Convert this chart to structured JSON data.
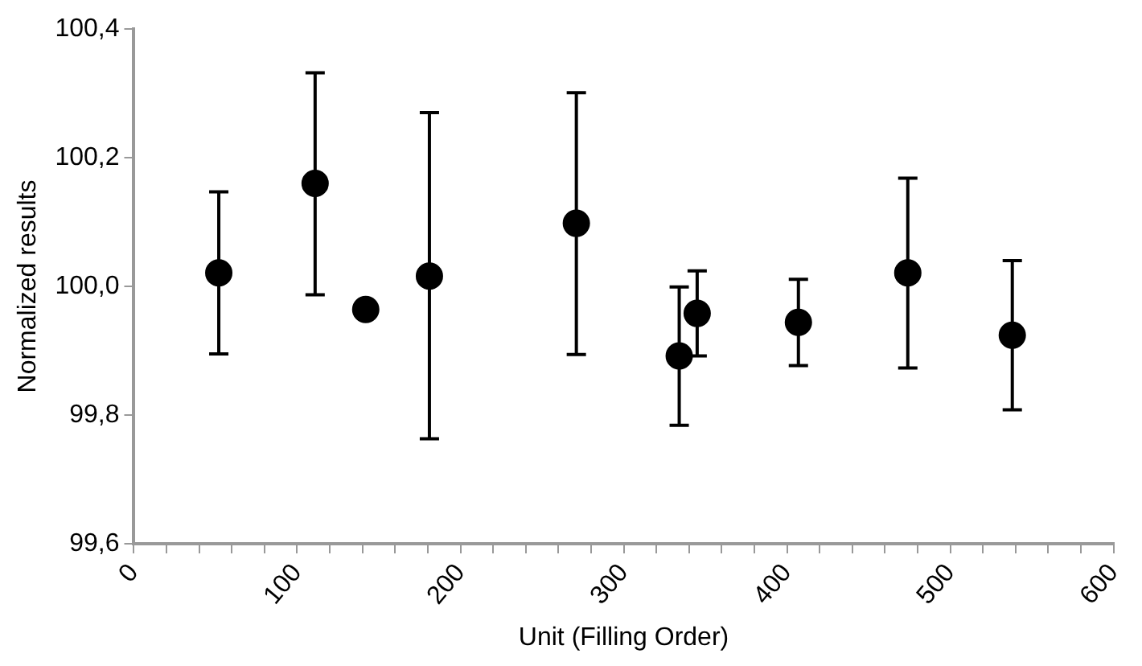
{
  "chart_data": {
    "type": "scatter",
    "xlabel": "Unit (Filling Order)",
    "ylabel": "Normalized results",
    "x": [
      52,
      111,
      142,
      181,
      271,
      334,
      345,
      407,
      474,
      538
    ],
    "series": [
      {
        "color": "#000000",
        "values": [
          100.021,
          100.16,
          99.964,
          100.016,
          100.098,
          99.892,
          99.958,
          99.944,
          100.021,
          99.924
        ],
        "errors": [
          [
            99.895,
            100.147
          ],
          [
            99.987,
            100.332
          ],
          null,
          [
            99.763,
            100.27
          ],
          [
            99.894,
            100.301
          ],
          [
            99.784,
            99.999
          ],
          [
            99.892,
            100.024
          ],
          [
            99.877,
            100.011
          ],
          [
            99.873,
            100.168
          ],
          [
            99.808,
            100.04
          ]
        ]
      }
    ],
    "xlim": [
      0,
      600
    ],
    "xticks": [
      0,
      {
        "value": 20,
        "label": null
      },
      {
        "value": 40,
        "label": null
      },
      {
        "value": 60,
        "label": null
      },
      {
        "value": 80,
        "label": null
      },
      100,
      {
        "value": 120,
        "label": null
      },
      {
        "value": 140,
        "label": null
      },
      {
        "value": 160,
        "label": null
      },
      {
        "value": 180,
        "label": null
      },
      200,
      {
        "value": 220,
        "label": null
      },
      {
        "value": 240,
        "label": null
      },
      {
        "value": 260,
        "label": null
      },
      {
        "value": 280,
        "label": null
      },
      300,
      {
        "value": 320,
        "label": null
      },
      {
        "value": 340,
        "label": null
      },
      {
        "value": 360,
        "label": null
      },
      {
        "value": 380,
        "label": null
      },
      400,
      {
        "value": 420,
        "label": null
      },
      {
        "value": 440,
        "label": null
      },
      {
        "value": 460,
        "label": null
      },
      {
        "value": 480,
        "label": null
      },
      500,
      {
        "value": 520,
        "label": null
      },
      {
        "value": 540,
        "label": null
      },
      {
        "value": 560,
        "label": null
      },
      {
        "value": 580,
        "label": null
      },
      600
    ],
    "ylim": [
      99.6,
      100.4
    ],
    "yticks": [
      {
        "value": 99.6,
        "label": "99,6"
      },
      {
        "value": 99.8,
        "label": "99,8"
      },
      {
        "value": 100.0,
        "label": "100,0"
      },
      {
        "value": 100.2,
        "label": "100,2"
      },
      {
        "value": 100.4,
        "label": "100,4"
      }
    ],
    "grid": false,
    "legend": false,
    "marker": "circle"
  }
}
